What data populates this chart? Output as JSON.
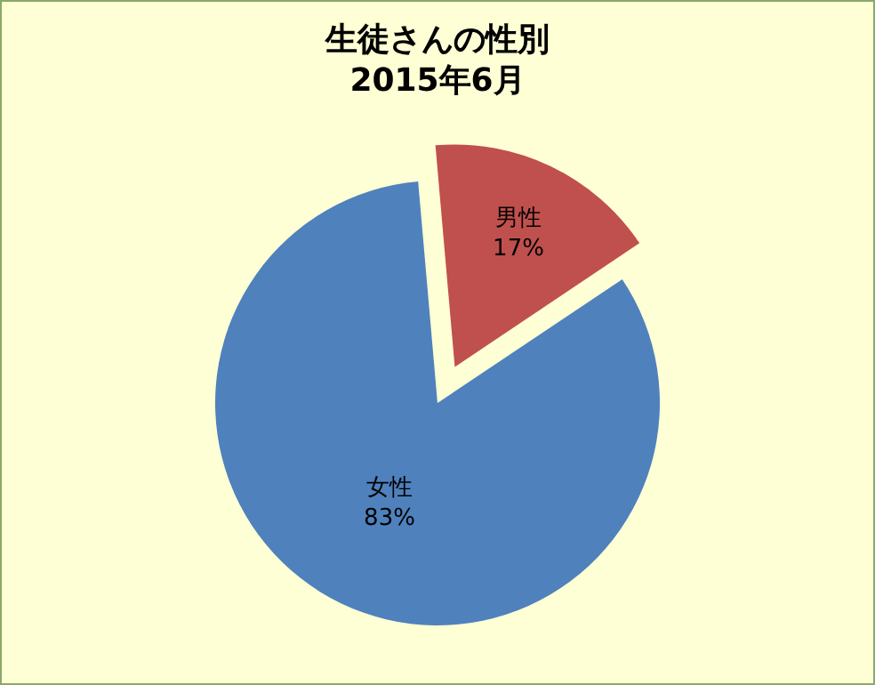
{
  "chart_data": {
    "type": "pie",
    "title": "生徒さんの性別",
    "subtitle": "2015年6月",
    "categories": [
      "男性",
      "女性"
    ],
    "values": [
      17,
      83
    ],
    "colors": [
      "#c0504d",
      "#4f81bd"
    ],
    "value_labels": [
      "17%",
      "83%"
    ],
    "legend": false
  }
}
